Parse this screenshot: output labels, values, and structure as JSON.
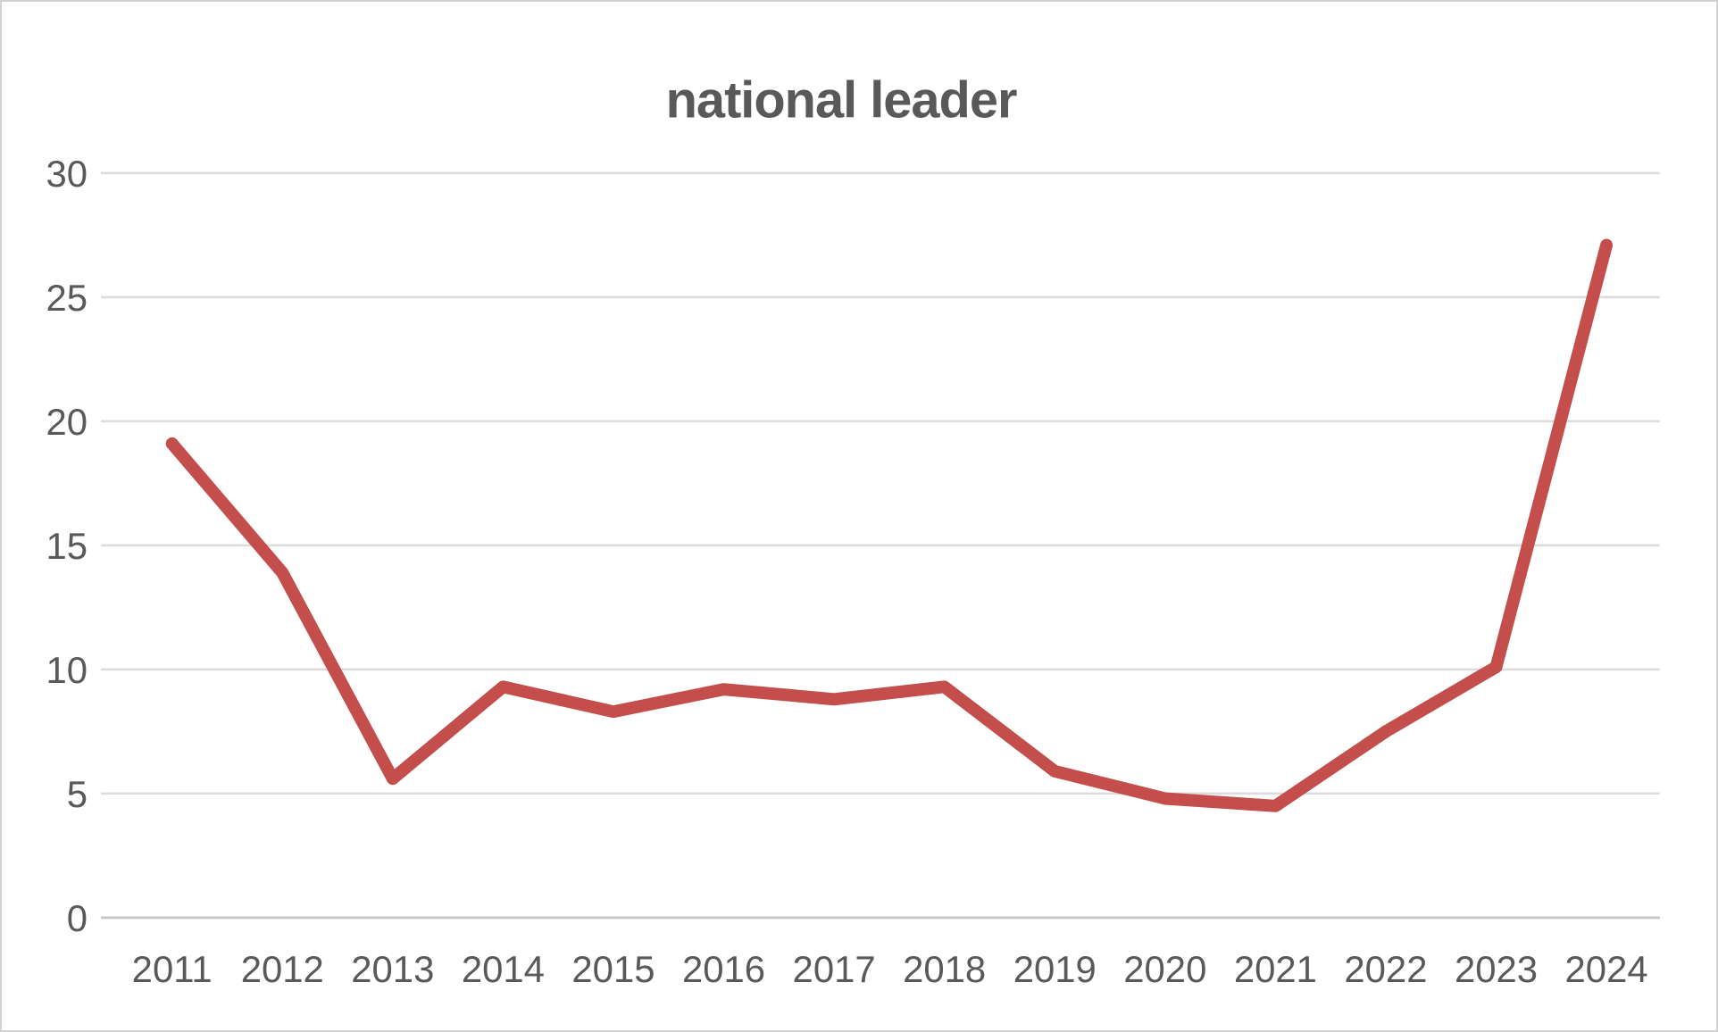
{
  "chart": {
    "title": "national leader",
    "colors": {
      "line": "#c34e4b",
      "gridline": "#dcdcdc",
      "axis_line": "#c6c6c6",
      "text": "#595959",
      "background": "#ffffff",
      "border": "#d2d2d2"
    }
  },
  "chart_data": {
    "type": "line",
    "title": "national leader",
    "categories": [
      "2011",
      "2012",
      "2013",
      "2014",
      "2015",
      "2016",
      "2017",
      "2018",
      "2019",
      "2020",
      "2021",
      "2022",
      "2023",
      "2024"
    ],
    "values": [
      19.1,
      13.9,
      5.6,
      9.3,
      8.3,
      9.2,
      8.8,
      9.3,
      5.9,
      4.8,
      4.5,
      7.5,
      10.1,
      27.1
    ],
    "xlabel": "",
    "ylabel": "",
    "ylim": [
      0,
      30
    ],
    "yticks": [
      0,
      5,
      10,
      15,
      20,
      25,
      30
    ],
    "grid": true,
    "legend": false,
    "series": [
      {
        "name": "national leader",
        "color": "#c34e4b",
        "values": [
          19.1,
          13.9,
          5.6,
          9.3,
          8.3,
          9.2,
          8.8,
          9.3,
          5.9,
          4.8,
          4.5,
          7.5,
          10.1,
          27.1
        ]
      }
    ]
  }
}
